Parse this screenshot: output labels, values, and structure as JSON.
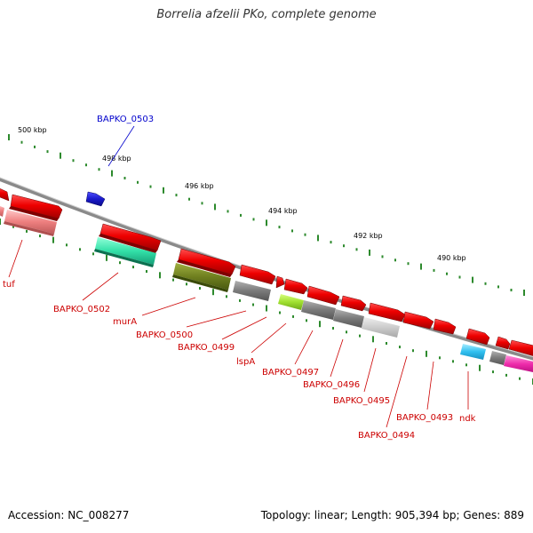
{
  "title": "Borrelia afzelii PKo, complete genome",
  "footer": {
    "accession": "Accession: NC_008277",
    "summary": "Topology: linear; Length: 905,394 bp; Genes: 889"
  },
  "colors": {
    "backbone": "#8a8a8a",
    "ticks": "#2d8a2d",
    "label_red": "#cc0000",
    "label_blue": "#0000cc"
  },
  "scale_labels": [
    "500 kbp",
    "498 kbp",
    "496 kbp",
    "494 kbp",
    "492 kbp",
    "490 kbp"
  ],
  "genes": [
    {
      "name": "BAPKO_0503",
      "color": "#1a1acc"
    },
    {
      "name": "tuf",
      "color": "#cc0000"
    },
    {
      "name": "BAPKO_0502",
      "color": "#cc0000"
    },
    {
      "name": "murA",
      "color": "#cc0000"
    },
    {
      "name": "BAPKO_0500",
      "color": "#cc0000"
    },
    {
      "name": "BAPKO_0499",
      "color": "#cc0000"
    },
    {
      "name": "lspA",
      "color": "#cc0000"
    },
    {
      "name": "BAPKO_0497",
      "color": "#cc0000"
    },
    {
      "name": "BAPKO_0496",
      "color": "#cc0000"
    },
    {
      "name": "BAPKO_0495",
      "color": "#cc0000"
    },
    {
      "name": "BAPKO_0494",
      "color": "#cc0000"
    },
    {
      "name": "BAPKO_0493",
      "color": "#cc0000"
    },
    {
      "name": "ndk",
      "color": "#cc0000"
    }
  ]
}
